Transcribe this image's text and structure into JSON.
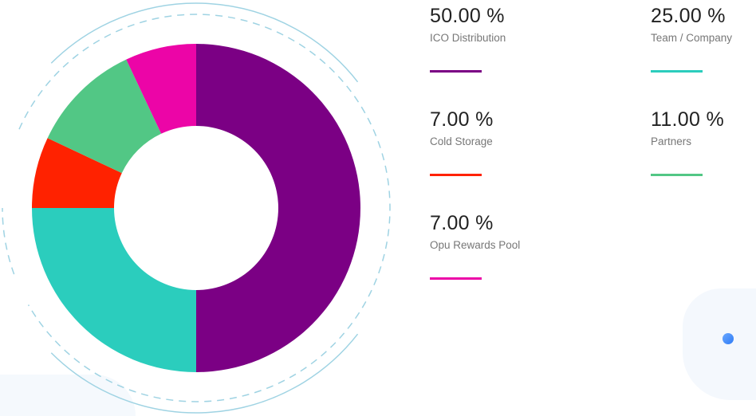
{
  "chart_data": {
    "type": "pie",
    "variant": "donut",
    "title": "",
    "slices": [
      {
        "label": "ICO Distribution",
        "value": 50.0,
        "display": "50.00 %",
        "color": "#7b0084"
      },
      {
        "label": "Team / Company",
        "value": 25.0,
        "display": "25.00 %",
        "color": "#2bcdbd"
      },
      {
        "label": "Cold Storage",
        "value": 7.0,
        "display": "7.00 %",
        "color": "#ff2200"
      },
      {
        "label": "Partners",
        "value": 11.0,
        "display": "11.00 %",
        "color": "#52c785"
      },
      {
        "label": "Opu Rewards Pool",
        "value": 7.0,
        "display": "7.00 %",
        "color": "#ec05a7"
      }
    ],
    "legend_placement": "right"
  }
}
